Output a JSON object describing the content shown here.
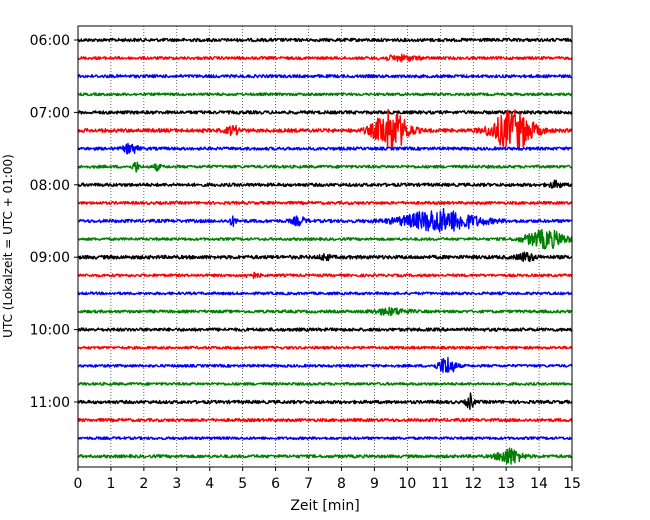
{
  "chart_data": {
    "type": "line",
    "title": "",
    "xlabel": "Zeit  [min]",
    "ylabel": "UTC (Lokalzeit = UTC + 01:00)",
    "xlim": [
      0,
      15
    ],
    "x_ticks": [
      0,
      1,
      2,
      3,
      4,
      5,
      6,
      7,
      8,
      9,
      10,
      11,
      12,
      13,
      14,
      15
    ],
    "y_ticks": [
      {
        "label": "06:00",
        "trace": 0
      },
      {
        "label": "07:00",
        "trace": 4
      },
      {
        "label": "08:00",
        "trace": 8
      },
      {
        "label": "09:00",
        "trace": 12
      },
      {
        "label": "10:00",
        "trace": 16
      },
      {
        "label": "11:00",
        "trace": 20
      }
    ],
    "grid": "vertical dotted lines at each minute",
    "trace_interval_minutes": 15,
    "color_cycle": [
      "#000000",
      "#ff0000",
      "#0000ff",
      "#008000"
    ],
    "traces": [
      {
        "start": "06:00",
        "color": "#000000",
        "noise": 1.6,
        "events": []
      },
      {
        "start": "06:15",
        "color": "#ff0000",
        "noise": 1.4,
        "events": [
          {
            "t": 9.8,
            "amp": 2.5,
            "dur": 1.0
          }
        ]
      },
      {
        "start": "06:30",
        "color": "#0000ff",
        "noise": 1.5,
        "events": []
      },
      {
        "start": "06:45",
        "color": "#008000",
        "noise": 1.3,
        "events": []
      },
      {
        "start": "07:00",
        "color": "#000000",
        "noise": 1.6,
        "events": []
      },
      {
        "start": "07:15",
        "color": "#ff0000",
        "noise": 1.8,
        "events": [
          {
            "t": 4.7,
            "amp": 4,
            "dur": 0.4
          },
          {
            "t": 9.5,
            "amp": 20,
            "dur": 1.0
          },
          {
            "t": 13.2,
            "amp": 20,
            "dur": 1.2
          }
        ]
      },
      {
        "start": "07:30",
        "color": "#0000ff",
        "noise": 1.5,
        "events": [
          {
            "t": 1.6,
            "amp": 5,
            "dur": 0.4
          }
        ]
      },
      {
        "start": "07:45",
        "color": "#008000",
        "noise": 1.4,
        "events": [
          {
            "t": 1.75,
            "amp": 6,
            "dur": 0.15
          },
          {
            "t": 2.4,
            "amp": 3,
            "dur": 0.2
          }
        ]
      },
      {
        "start": "08:00",
        "color": "#000000",
        "noise": 1.6,
        "events": [
          {
            "t": 14.5,
            "amp": 3,
            "dur": 0.4
          }
        ]
      },
      {
        "start": "08:15",
        "color": "#ff0000",
        "noise": 1.4,
        "events": []
      },
      {
        "start": "08:30",
        "color": "#0000ff",
        "noise": 1.6,
        "events": [
          {
            "t": 4.7,
            "amp": 4,
            "dur": 0.2
          },
          {
            "t": 6.7,
            "amp": 4,
            "dur": 0.4
          },
          {
            "t": 11.0,
            "amp": 11,
            "dur": 2.2
          }
        ]
      },
      {
        "start": "08:45",
        "color": "#008000",
        "noise": 1.3,
        "events": [
          {
            "t": 14.2,
            "amp": 9,
            "dur": 1.2
          }
        ]
      },
      {
        "start": "09:00",
        "color": "#000000",
        "noise": 1.8,
        "events": [
          {
            "t": 7.5,
            "amp": 3,
            "dur": 0.3
          },
          {
            "t": 13.6,
            "amp": 4,
            "dur": 0.5
          }
        ]
      },
      {
        "start": "09:15",
        "color": "#ff0000",
        "noise": 1.3,
        "events": [
          {
            "t": 5.3,
            "amp": 2.5,
            "dur": 0.4
          }
        ]
      },
      {
        "start": "09:30",
        "color": "#0000ff",
        "noise": 1.3,
        "events": []
      },
      {
        "start": "09:45",
        "color": "#008000",
        "noise": 1.4,
        "events": [
          {
            "t": 9.5,
            "amp": 3,
            "dur": 1.0
          }
        ]
      },
      {
        "start": "10:00",
        "color": "#000000",
        "noise": 1.6,
        "events": []
      },
      {
        "start": "10:15",
        "color": "#ff0000",
        "noise": 1.3,
        "events": []
      },
      {
        "start": "10:30",
        "color": "#0000ff",
        "noise": 1.3,
        "events": [
          {
            "t": 11.2,
            "amp": 9,
            "dur": 0.5
          }
        ]
      },
      {
        "start": "10:45",
        "color": "#008000",
        "noise": 1.3,
        "events": []
      },
      {
        "start": "11:00",
        "color": "#000000",
        "noise": 1.6,
        "events": [
          {
            "t": 11.9,
            "amp": 8,
            "dur": 0.2
          }
        ]
      },
      {
        "start": "11:15",
        "color": "#ff0000",
        "noise": 1.5,
        "events": []
      },
      {
        "start": "11:30",
        "color": "#0000ff",
        "noise": 1.3,
        "events": []
      },
      {
        "start": "11:45",
        "color": "#008000",
        "noise": 1.5,
        "events": [
          {
            "t": 13.1,
            "amp": 8,
            "dur": 0.7
          }
        ]
      }
    ]
  }
}
